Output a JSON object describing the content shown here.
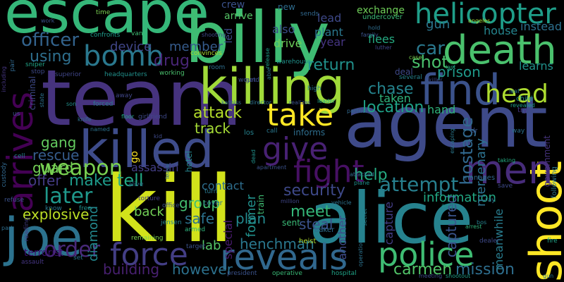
{
  "words": [
    {
      "text": "escape",
      "color": "#35b779"
    },
    {
      "text": "billy",
      "color": "#3fbc73"
    },
    {
      "text": "team",
      "color": "#46337e"
    },
    {
      "text": "agent",
      "color": "#3e4a89"
    },
    {
      "text": "kill",
      "color": "#d2e21b"
    },
    {
      "text": "alice",
      "color": "#26828e"
    },
    {
      "text": "killing",
      "color": "#a0da39"
    },
    {
      "text": "killed",
      "color": "#3e4c8a"
    },
    {
      "text": "death",
      "color": "#4ac16d"
    },
    {
      "text": "find",
      "color": "#3b528b"
    },
    {
      "text": "shoot",
      "color": "#fde725"
    },
    {
      "text": "joe",
      "color": "#2c728e"
    },
    {
      "text": "reveals",
      "color": "#31688e"
    },
    {
      "text": "police",
      "color": "#3fbc73"
    },
    {
      "text": "force",
      "color": "#433e85"
    },
    {
      "text": "helicopter",
      "color": "#1f9e89"
    },
    {
      "text": "take",
      "color": "#fde725"
    },
    {
      "text": "give",
      "color": "#482173"
    },
    {
      "text": "fight",
      "color": "#471063"
    },
    {
      "text": "men",
      "color": "#472c7a"
    },
    {
      "text": "bomb",
      "color": "#2a788e"
    },
    {
      "text": "arrives",
      "color": "#440154"
    },
    {
      "text": "head",
      "color": "#addc30"
    },
    {
      "text": "officer",
      "color": "#33638d"
    },
    {
      "text": "weapon",
      "color": "#7ad151"
    },
    {
      "text": "attempt",
      "color": "#277f8e"
    },
    {
      "text": "later",
      "color": "#1f988b"
    },
    {
      "text": "order",
      "color": "#482979"
    },
    {
      "text": "carmen",
      "color": "#52c569"
    },
    {
      "text": "mission",
      "color": "#2e6e8e"
    },
    {
      "text": "hostage",
      "color": "#31688e"
    },
    {
      "text": "car",
      "color": "#2a788e"
    },
    {
      "text": "shot",
      "color": "#4ac16d"
    },
    {
      "text": "drug",
      "color": "#482576"
    },
    {
      "text": "using",
      "color": "#2e6f8e"
    },
    {
      "text": "gang",
      "color": "#63cb5f"
    },
    {
      "text": "rescue",
      "color": "#365d8d"
    },
    {
      "text": "guard",
      "color": "#73d056"
    },
    {
      "text": "attack",
      "color": "#b5de2b"
    },
    {
      "text": "track",
      "color": "#a5db36"
    },
    {
      "text": "location",
      "color": "#1fa187"
    },
    {
      "text": "chase",
      "color": "#25848e"
    },
    {
      "text": "return",
      "color": "#21918c"
    },
    {
      "text": "prison",
      "color": "#1f9a8a"
    },
    {
      "text": "security",
      "color": "#3e4989"
    },
    {
      "text": "help",
      "color": "#25ab82"
    },
    {
      "text": "meet",
      "color": "#35b779"
    },
    {
      "text": "captured",
      "color": "#3a548c"
    },
    {
      "text": "building",
      "color": "#482071"
    },
    {
      "text": "however",
      "color": "#2c718e"
    },
    {
      "text": "henchman",
      "color": "#2a788e"
    },
    {
      "text": "tell",
      "color": "#22a884"
    },
    {
      "text": "make",
      "color": "#1e9b8a"
    },
    {
      "text": "offer",
      "color": "#443b84"
    },
    {
      "text": "group",
      "color": "#44bf70"
    },
    {
      "text": "safe",
      "color": "#2c728e"
    },
    {
      "text": "plan",
      "color": "#23898e"
    },
    {
      "text": "steal",
      "color": "#3b528b"
    },
    {
      "text": "back",
      "color": "#73d056"
    },
    {
      "text": "explosive",
      "color": "#bddf26"
    },
    {
      "text": "diamond",
      "color": "#23888e"
    },
    {
      "text": "terrorist",
      "color": "#3b0f70"
    },
    {
      "text": "lab",
      "color": "#54c568"
    },
    {
      "text": "information",
      "color": "#22a884"
    },
    {
      "text": "meanwhile",
      "color": "#287c8e"
    },
    {
      "text": "capture",
      "color": "#433d84"
    },
    {
      "text": "mercenary",
      "color": "#2c718e"
    },
    {
      "text": "assassin",
      "color": "#433e85"
    },
    {
      "text": "contact",
      "color": "#2e6e8e"
    },
    {
      "text": "former",
      "color": "#21918c"
    },
    {
      "text": "another",
      "color": "#3e4a89"
    },
    {
      "text": "special",
      "color": "#481b6d"
    },
    {
      "text": "hand",
      "color": "#2fb47c"
    },
    {
      "text": "member",
      "color": "#365c8d"
    },
    {
      "text": "device",
      "color": "#404688"
    },
    {
      "text": "gun",
      "color": "#2b758e"
    },
    {
      "text": "house",
      "color": "#25858e"
    },
    {
      "text": "instead",
      "color": "#2d708e"
    },
    {
      "text": "learns",
      "color": "#20928c"
    },
    {
      "text": "plant",
      "color": "#2a778e"
    },
    {
      "text": "year",
      "color": "#453581"
    },
    {
      "text": "flees",
      "color": "#25ab82"
    },
    {
      "text": "drive",
      "color": "#6ccd5a"
    },
    {
      "text": "also",
      "color": "#3c4f8a"
    },
    {
      "text": "lead",
      "color": "#3e4989"
    },
    {
      "text": "exchange",
      "color": "#6ece58"
    },
    {
      "text": "undercover",
      "color": "#3aba76"
    },
    {
      "text": "crew",
      "color": "#3b528b"
    },
    {
      "text": "arrive",
      "color": "#56c667"
    },
    {
      "text": "new",
      "color": "#2f6c8e"
    },
    {
      "text": "sends",
      "color": "#31688e"
    },
    {
      "text": "time",
      "color": "#7ad151"
    },
    {
      "text": "van",
      "color": "#3fbc73"
    },
    {
      "text": "confronts",
      "color": "#1e9b8a"
    },
    {
      "text": "shooting",
      "color": "#3e4989"
    },
    {
      "text": "convinces",
      "color": "#addc30"
    },
    {
      "text": "headquarters",
      "color": "#21918c"
    },
    {
      "text": "superior",
      "color": "#404688"
    },
    {
      "text": "sniper",
      "color": "#20a386"
    },
    {
      "text": "working",
      "color": "#4ac16d"
    },
    {
      "text": "room",
      "color": "#2e6e8e"
    },
    {
      "text": "wound",
      "color": "#3b528b"
    },
    {
      "text": "release",
      "color": "#1f9e89"
    },
    {
      "text": "led",
      "color": "#3e4c8a"
    },
    {
      "text": "able",
      "color": "#2c728e"
    },
    {
      "text": "warehouse",
      "color": "#21918c"
    },
    {
      "text": "high",
      "color": "#2a788e"
    },
    {
      "text": "several",
      "color": "#26828e"
    },
    {
      "text": "taken",
      "color": "#2fb47c"
    },
    {
      "text": "deal",
      "color": "#3e4989"
    },
    {
      "text": "case",
      "color": "#7ad151"
    },
    {
      "text": "child",
      "color": "#21918c"
    },
    {
      "text": "leaf",
      "color": "#2c728e"
    },
    {
      "text": "revealed",
      "color": "#1f9e89"
    },
    {
      "text": "last",
      "color": "#22a884"
    },
    {
      "text": "family",
      "color": "#3b528b"
    },
    {
      "text": "luther",
      "color": "#404688"
    },
    {
      "text": "hold",
      "color": "#2e6e8e"
    },
    {
      "text": "angeles",
      "color": "#a5db36"
    },
    {
      "text": "killer",
      "color": "#3e4a89"
    },
    {
      "text": "try",
      "color": "#453581"
    },
    {
      "text": "way",
      "color": "#2c728e"
    },
    {
      "text": "dr",
      "color": "#3b528b"
    },
    {
      "text": "government",
      "color": "#46337e"
    },
    {
      "text": "following",
      "color": "#2a788e"
    },
    {
      "text": "taking",
      "color": "#25ab82"
    },
    {
      "text": "save",
      "color": "#3e4989"
    },
    {
      "text": "manages",
      "color": "#31688e"
    },
    {
      "text": "ray",
      "color": "#2c728e"
    },
    {
      "text": "arm",
      "color": "#21918c"
    },
    {
      "text": "bos",
      "color": "#26828e"
    },
    {
      "text": "arrest",
      "color": "#2fb47c"
    },
    {
      "text": "fire",
      "color": "#20a386"
    },
    {
      "text": "dealer",
      "color": "#3e4989"
    },
    {
      "text": "partner",
      "color": "#31688e"
    },
    {
      "text": "escaping",
      "color": "#2a788e"
    },
    {
      "text": "shootout",
      "color": "#1f9e89"
    },
    {
      "text": "meeting",
      "color": "#3e4c8a"
    },
    {
      "text": "hospital",
      "color": "#20a386"
    },
    {
      "text": "operative",
      "color": "#3aba76"
    },
    {
      "text": "operation",
      "color": "#2c728e"
    },
    {
      "text": "secret",
      "color": "#26828e"
    },
    {
      "text": "attacked",
      "color": "#31688e"
    },
    {
      "text": "plane",
      "color": "#21918c"
    },
    {
      "text": "president",
      "color": "#3b528b"
    },
    {
      "text": "heist",
      "color": "#addc30"
    },
    {
      "text": "baker",
      "color": "#2e6e8e"
    },
    {
      "text": "sent",
      "color": "#3aba76"
    },
    {
      "text": "million",
      "color": "#404688"
    },
    {
      "text": "vehicle",
      "color": "#2c728e"
    },
    {
      "text": "apartment",
      "color": "#3b528b"
    },
    {
      "text": "call",
      "color": "#2a788e"
    },
    {
      "text": "los",
      "color": "#26828e"
    },
    {
      "text": "informs",
      "color": "#2e6e8e"
    },
    {
      "text": "dead",
      "color": "#21918c"
    },
    {
      "text": "train",
      "color": "#3fbc73"
    },
    {
      "text": "director",
      "color": "#2c728e"
    },
    {
      "text": "realizes",
      "color": "#3b528b"
    },
    {
      "text": "leader",
      "color": "#22a884"
    },
    {
      "text": "katniss",
      "color": "#31688e"
    },
    {
      "text": "get",
      "color": "#3e4989"
    },
    {
      "text": "jensen",
      "color": "#26828e"
    },
    {
      "text": "turn",
      "color": "#2a788e"
    },
    {
      "text": "torture",
      "color": "#433e85"
    },
    {
      "text": "office",
      "color": "#3b528b"
    },
    {
      "text": "alive",
      "color": "#2e6e8e"
    },
    {
      "text": "leave",
      "color": "#31688e"
    },
    {
      "text": "hotel",
      "color": "#25858e"
    },
    {
      "text": "cover",
      "color": "#2c728e"
    },
    {
      "text": "kid",
      "color": "#3e4989"
    },
    {
      "text": "armed",
      "color": "#2fb47c"
    },
    {
      "text": "target",
      "color": "#3b528b"
    },
    {
      "text": "remaining",
      "color": "#7ad151"
    },
    {
      "text": "set",
      "color": "#2c728e"
    },
    {
      "text": "assault",
      "color": "#453581"
    },
    {
      "text": "free",
      "color": "#21918c"
    },
    {
      "text": "know",
      "color": "#2a788e"
    },
    {
      "text": "refuse",
      "color": "#3b528b"
    },
    {
      "text": "part",
      "color": "#2e6e8e"
    },
    {
      "text": "reading",
      "color": "#433e85"
    },
    {
      "text": "cell",
      "color": "#26828e"
    },
    {
      "text": "custody",
      "color": "#31688e"
    },
    {
      "text": "named",
      "color": "#2c728e"
    },
    {
      "text": "floor",
      "color": "#22a884"
    },
    {
      "text": "girlfriend",
      "color": "#3e4989"
    },
    {
      "text": "forced",
      "color": "#2a788e"
    },
    {
      "text": "away",
      "color": "#404688"
    },
    {
      "text": "knife",
      "color": "#2e6e8e"
    },
    {
      "text": "son",
      "color": "#21918c"
    },
    {
      "text": "go",
      "color": "#fde725"
    },
    {
      "text": "us",
      "color": "#3b528b"
    },
    {
      "text": "criminal",
      "color": "#3e4a89"
    },
    {
      "text": "state",
      "color": "#2c728e"
    },
    {
      "text": "stop",
      "color": "#3e4989"
    },
    {
      "text": "pair",
      "color": "#31688e"
    },
    {
      "text": "including",
      "color": "#453581"
    },
    {
      "text": "work",
      "color": "#3b528b"
    },
    {
      "text": "gun",
      "color": "#2a788e"
    }
  ]
}
